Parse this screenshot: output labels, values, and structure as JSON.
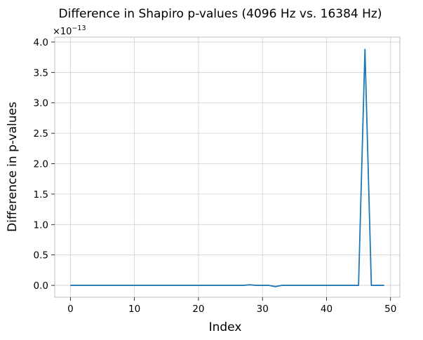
{
  "chart_data": {
    "type": "line",
    "title": "Difference in Shapiro p-values (4096 Hz vs. 16384 Hz)",
    "xlabel": "Index",
    "ylabel": "Difference in p-values",
    "offset_text": "×10",
    "offset_exponent": "−13",
    "xlim": [
      -2.45,
      51.45
    ],
    "ylim": [
      -0.195,
      4.08
    ],
    "y_scale_exponent": -13,
    "grid": true,
    "legend": "none",
    "x_ticks": [
      0,
      10,
      20,
      30,
      40,
      50
    ],
    "x_tick_labels": [
      "0",
      "10",
      "20",
      "30",
      "40",
      "50"
    ],
    "y_ticks": [
      0.0,
      0.5,
      1.0,
      1.5,
      2.0,
      2.5,
      3.0,
      3.5,
      4.0
    ],
    "y_tick_labels": [
      "0.0",
      "0.5",
      "1.0",
      "1.5",
      "2.0",
      "2.5",
      "3.0",
      "3.5",
      "4.0"
    ],
    "series": [
      {
        "color": "#1f77b4",
        "x": [
          0,
          1,
          2,
          3,
          4,
          5,
          6,
          7,
          8,
          9,
          10,
          11,
          12,
          13,
          14,
          15,
          16,
          17,
          18,
          19,
          20,
          21,
          22,
          23,
          24,
          25,
          26,
          27,
          28,
          29,
          30,
          31,
          32,
          33,
          34,
          35,
          36,
          37,
          38,
          39,
          40,
          41,
          42,
          43,
          44,
          45,
          46,
          47,
          48,
          49
        ],
        "y": [
          0,
          0,
          0,
          0,
          0,
          0,
          0,
          0,
          0,
          0,
          0,
          0,
          0,
          0,
          0,
          0,
          0,
          0,
          0,
          0,
          0,
          0,
          0,
          0,
          0,
          0,
          0,
          0,
          0.01,
          0,
          0,
          0,
          -0.02,
          0,
          0,
          0,
          0,
          0,
          0,
          0,
          0,
          0,
          0,
          0,
          0,
          0,
          3.88,
          0,
          0,
          0
        ]
      }
    ]
  }
}
